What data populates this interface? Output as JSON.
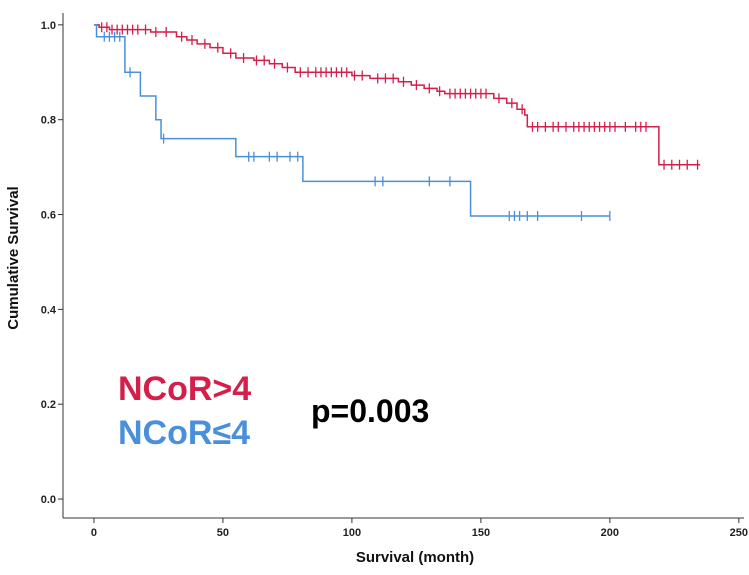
{
  "chart_data": {
    "type": "line",
    "subtype": "kaplan-meier",
    "title": "",
    "xlabel": "Survival (month)",
    "ylabel": "Cumulative Survival",
    "xlim": [
      -12,
      252
    ],
    "ylim": [
      -0.04,
      1.025
    ],
    "xticks": [
      0,
      50,
      100,
      150,
      200,
      250
    ],
    "yticks": [
      0.0,
      0.2,
      0.4,
      0.6,
      0.8,
      1.0
    ],
    "xtick_labels": [
      "0",
      "50",
      "100",
      "150",
      "200",
      "250"
    ],
    "ytick_labels": [
      "0.0",
      "0.2",
      "0.4",
      "0.6",
      "0.8",
      "1.0"
    ],
    "grid": false,
    "series": [
      {
        "name": "NCoR>4",
        "color": "#d41f4a",
        "steps": [
          [
            0,
            1.0
          ],
          [
            2,
            0.995
          ],
          [
            6,
            0.99
          ],
          [
            22,
            0.985
          ],
          [
            32,
            0.975
          ],
          [
            36,
            0.968
          ],
          [
            40,
            0.96
          ],
          [
            45,
            0.952
          ],
          [
            50,
            0.94
          ],
          [
            55,
            0.93
          ],
          [
            62,
            0.925
          ],
          [
            68,
            0.918
          ],
          [
            73,
            0.91
          ],
          [
            78,
            0.9
          ],
          [
            100,
            0.893
          ],
          [
            107,
            0.887
          ],
          [
            118,
            0.88
          ],
          [
            123,
            0.873
          ],
          [
            128,
            0.866
          ],
          [
            133,
            0.86
          ],
          [
            136,
            0.855
          ],
          [
            155,
            0.845
          ],
          [
            160,
            0.835
          ],
          [
            164,
            0.822
          ],
          [
            167,
            0.81
          ],
          [
            168,
            0.785
          ],
          [
            218,
            0.785
          ],
          [
            219,
            0.705
          ],
          [
            235,
            0.705
          ]
        ],
        "censored": [
          3,
          5,
          7,
          9,
          11,
          13,
          15,
          17,
          20,
          24,
          28,
          34,
          38,
          43,
          48,
          53,
          58,
          63,
          66,
          70,
          75,
          80,
          83,
          86,
          88,
          90,
          92,
          94,
          96,
          98,
          101,
          104,
          110,
          113,
          116,
          120,
          125,
          130,
          134,
          138,
          140,
          142,
          144,
          146,
          148,
          150,
          152,
          157,
          162,
          166,
          170,
          172,
          175,
          178,
          180,
          183,
          186,
          188,
          190,
          192,
          194,
          196,
          198,
          200,
          202,
          206,
          210,
          212,
          214,
          221,
          224,
          227,
          230,
          234
        ]
      },
      {
        "name": "NCoR≤4",
        "color": "#4a8fdc",
        "steps": [
          [
            0,
            1.0
          ],
          [
            1,
            0.975
          ],
          [
            12,
            0.9
          ],
          [
            18,
            0.85
          ],
          [
            24,
            0.8
          ],
          [
            26,
            0.76
          ],
          [
            55,
            0.722
          ],
          [
            81,
            0.67
          ],
          [
            146,
            0.597
          ],
          [
            200,
            0.597
          ]
        ],
        "censored": [
          4,
          6,
          8,
          10,
          14,
          27,
          60,
          62,
          68,
          71,
          76,
          79,
          109,
          112,
          130,
          138,
          161,
          163,
          165,
          168,
          172,
          189,
          200
        ]
      }
    ],
    "annotations": {
      "legend": [
        {
          "label": "NCoR>4",
          "color": "#d41f4a"
        },
        {
          "label": "NCoR≤4",
          "color": "#4a8fdc"
        }
      ],
      "p_value": "p=0.003"
    }
  }
}
